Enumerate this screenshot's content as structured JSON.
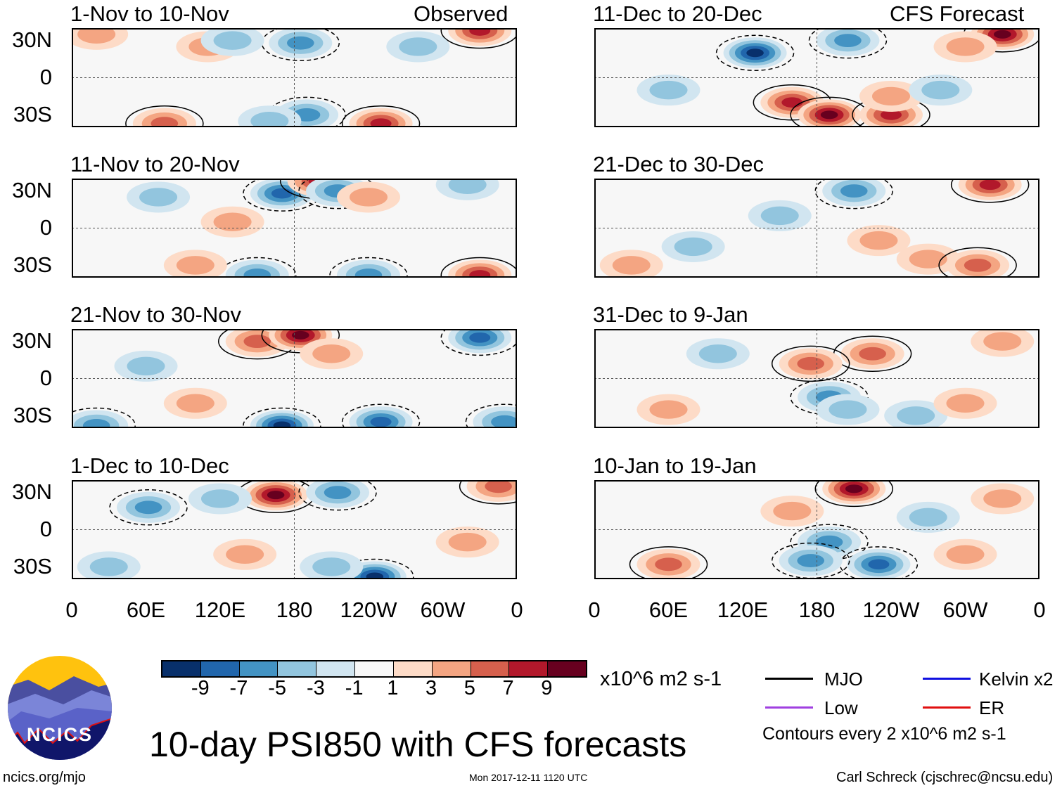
{
  "left_header": "Observed",
  "right_header": "CFS Forecast",
  "lat_labels": [
    "30N",
    "0",
    "30S"
  ],
  "lon_labels": [
    "0",
    "60E",
    "120E",
    "180",
    "120W",
    "60W",
    "0"
  ],
  "panels": [
    {
      "title": "1-Nov to 10-Nov",
      "features": [
        [
          185,
          28,
          -5
        ],
        [
          330,
          38,
          7
        ],
        [
          250,
          -37,
          7
        ],
        [
          75,
          -37,
          5
        ],
        [
          190,
          -30,
          -5
        ],
        [
          110,
          25,
          3
        ],
        [
          20,
          35,
          3
        ],
        [
          130,
          30,
          -3
        ],
        [
          280,
          25,
          -3
        ],
        [
          160,
          -35,
          -3
        ]
      ]
    },
    {
      "title": "11-Nov to 20-Nov",
      "features": [
        [
          170,
          28,
          -7
        ],
        [
          200,
          38,
          7
        ],
        [
          215,
          30,
          -5
        ],
        [
          240,
          25,
          3
        ],
        [
          320,
          35,
          -3
        ],
        [
          330,
          -38,
          7
        ],
        [
          150,
          -38,
          -5
        ],
        [
          240,
          -38,
          -5
        ],
        [
          100,
          -30,
          3
        ],
        [
          70,
          25,
          -3
        ],
        [
          130,
          5,
          3
        ]
      ]
    },
    {
      "title": "21-Nov to 30-Nov",
      "features": [
        [
          150,
          30,
          5
        ],
        [
          185,
          35,
          9
        ],
        [
          330,
          33,
          -7
        ],
        [
          210,
          20,
          3
        ],
        [
          100,
          -20,
          3
        ],
        [
          170,
          -38,
          -9
        ],
        [
          250,
          -35,
          -7
        ],
        [
          350,
          -35,
          -5
        ],
        [
          20,
          -38,
          -5
        ],
        [
          60,
          10,
          -3
        ]
      ]
    },
    {
      "title": "1-Dec to 10-Dec",
      "features": [
        [
          165,
          28,
          9
        ],
        [
          215,
          30,
          -5
        ],
        [
          62,
          18,
          -5
        ],
        [
          345,
          35,
          5
        ],
        [
          140,
          -20,
          3
        ],
        [
          245,
          -38,
          -9
        ],
        [
          210,
          -30,
          -3
        ],
        [
          30,
          -30,
          -3
        ],
        [
          120,
          25,
          -3
        ],
        [
          320,
          -10,
          3
        ]
      ]
    },
    {
      "title": "11-Dec to 20-Dec",
      "features": [
        [
          130,
          20,
          -9
        ],
        [
          205,
          30,
          -5
        ],
        [
          330,
          35,
          9
        ],
        [
          160,
          -20,
          7
        ],
        [
          190,
          -30,
          9
        ],
        [
          240,
          -30,
          7
        ],
        [
          240,
          -15,
          3
        ],
        [
          280,
          -10,
          -3
        ],
        [
          60,
          -10,
          -3
        ],
        [
          300,
          25,
          3
        ]
      ]
    },
    {
      "title": "21-Dec to 30-Dec",
      "features": [
        [
          210,
          30,
          -5
        ],
        [
          320,
          35,
          7
        ],
        [
          150,
          10,
          -3
        ],
        [
          270,
          -25,
          3
        ],
        [
          310,
          -30,
          5
        ],
        [
          80,
          -15,
          -3
        ],
        [
          230,
          -10,
          3
        ],
        [
          30,
          -30,
          3
        ]
      ]
    },
    {
      "title": "31-Dec to 9-Jan",
      "features": [
        [
          225,
          20,
          5
        ],
        [
          175,
          12,
          5
        ],
        [
          190,
          -15,
          -5
        ],
        [
          205,
          -25,
          -3
        ],
        [
          60,
          -25,
          3
        ],
        [
          330,
          30,
          3
        ],
        [
          260,
          -30,
          -3
        ],
        [
          100,
          20,
          -3
        ],
        [
          300,
          -20,
          3
        ]
      ]
    },
    {
      "title": "10-Jan to 19-Jan",
      "features": [
        [
          210,
          33,
          9
        ],
        [
          190,
          -10,
          -5
        ],
        [
          230,
          -28,
          -7
        ],
        [
          175,
          -25,
          -5
        ],
        [
          60,
          -28,
          5
        ],
        [
          300,
          -20,
          3
        ],
        [
          160,
          15,
          3
        ],
        [
          330,
          25,
          3
        ],
        [
          270,
          10,
          -3
        ]
      ]
    }
  ],
  "colorbar": {
    "colors": [
      "#08306b",
      "#2166ac",
      "#4393c3",
      "#92c5de",
      "#d1e5f0",
      "#f7f7f7",
      "#fddbc7",
      "#f4a582",
      "#d6604d",
      "#b2182b",
      "#67001f"
    ],
    "labels": [
      "-9",
      "-7",
      "-5",
      "-3",
      "-1",
      "1",
      "3",
      "5",
      "7",
      "9"
    ],
    "units": "x10^6 m2 s-1"
  },
  "legend": {
    "items": [
      {
        "label": "MJO",
        "color": "#000000"
      },
      {
        "label": "Kelvin x2",
        "color": "#1010e0"
      },
      {
        "label": "Low",
        "color": "#a040e0"
      },
      {
        "label": "ER",
        "color": "#e01010"
      }
    ],
    "note": "Contours every 2 x10^6 m2 s-1"
  },
  "logo_text": "NCICS",
  "main_title": "10-day PSI850 with CFS forecasts",
  "footer": {
    "left": "ncics.org/mjo",
    "center": "Mon 2017-12-11 1120 UTC",
    "right": "Carl Schreck (cjschrec@ncsu.edu)"
  }
}
